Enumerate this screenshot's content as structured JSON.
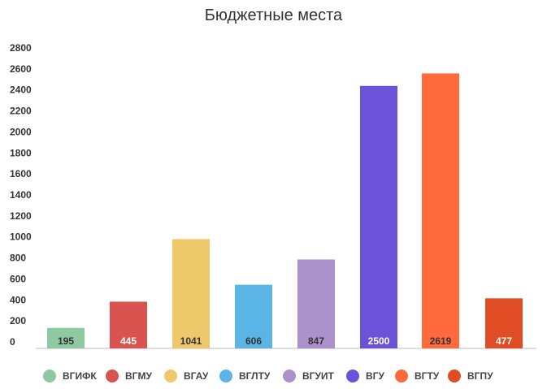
{
  "chart_data": {
    "type": "bar",
    "title": "Бюджетные места",
    "categories": [
      "ВГИФК",
      "ВГМУ",
      "ВГАУ",
      "ВГЛТУ",
      "ВГУИТ",
      "ВГУ",
      "ВГТУ",
      "ВГПУ"
    ],
    "values": [
      195,
      445,
      1041,
      606,
      847,
      2500,
      2619,
      477
    ],
    "data_labels": [
      "195",
      "445",
      "1041",
      "606",
      "847",
      "2500",
      "2619",
      "477"
    ],
    "colors": [
      "#8ec9a2",
      "#d9534f",
      "#eec96b",
      "#5ab4e6",
      "#ab92ca",
      "#6c52d9",
      "#ff6a3d",
      "#e04d24"
    ],
    "label_colors": [
      "#333333",
      "#ffffff",
      "#333333",
      "#333333",
      "#333333",
      "#ffffff",
      "#333333",
      "#ffffff"
    ],
    "yticks": [
      "0",
      "200",
      "400",
      "600",
      "800",
      "1000",
      "1200",
      "1400",
      "1600",
      "1800",
      "2000",
      "2200",
      "2400",
      "2600",
      "2800"
    ],
    "ylim": [
      0,
      2800
    ],
    "grid": false,
    "legend_position": "bottom"
  }
}
